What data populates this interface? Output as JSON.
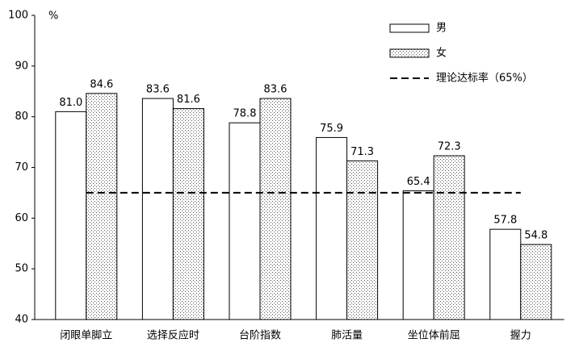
{
  "chart_data": {
    "type": "bar",
    "categories": [
      "闭眼单脚立",
      "选择反应时",
      "台阶指数",
      "肺活量",
      "坐位体前屈",
      "握力"
    ],
    "series": [
      {
        "name": "男",
        "color": "#ffffff",
        "values": [
          81.0,
          83.6,
          78.8,
          75.9,
          65.4,
          57.8
        ],
        "value_labels": [
          "81.0",
          "83.6",
          "78.8",
          "75.9",
          "65.4",
          "57.8"
        ]
      },
      {
        "name": "女",
        "color": "dotted",
        "values": [
          84.6,
          81.6,
          83.6,
          71.3,
          72.3,
          54.8
        ],
        "value_labels": [
          "84.6",
          "81.6",
          "83.6",
          "71.3",
          "72.3",
          "54.8"
        ]
      }
    ],
    "reference_line": {
      "value": 65,
      "label": "理论达标率（65%）"
    },
    "y_unit": "%",
    "ylim": [
      40,
      100
    ],
    "yticks": [
      40,
      50,
      60,
      70,
      80,
      90,
      100
    ]
  }
}
